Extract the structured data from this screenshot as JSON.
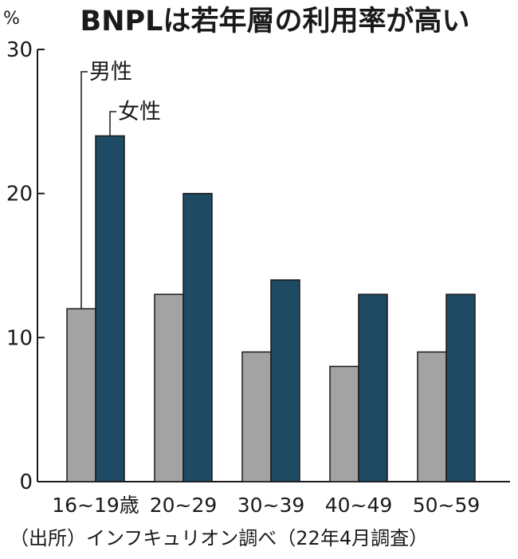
{
  "chart_data": {
    "type": "bar",
    "title": "BNPLは若年層の利用率が高い",
    "unit": "%",
    "categories": [
      "16~19歳",
      "20~29",
      "30~39",
      "40~49",
      "50~59"
    ],
    "series": [
      {
        "name": "男性",
        "values": [
          12,
          13,
          9,
          8,
          9
        ],
        "color": "#a3a3a3"
      },
      {
        "name": "女性",
        "values": [
          24,
          20,
          14,
          13,
          13
        ],
        "color": "#1f4a63"
      }
    ],
    "ylim": [
      0,
      30
    ],
    "yticks": [
      "0",
      "10",
      "20",
      "30"
    ],
    "grid": false,
    "source": "（出所）インフキュリオン調べ（22年4月調査）"
  }
}
